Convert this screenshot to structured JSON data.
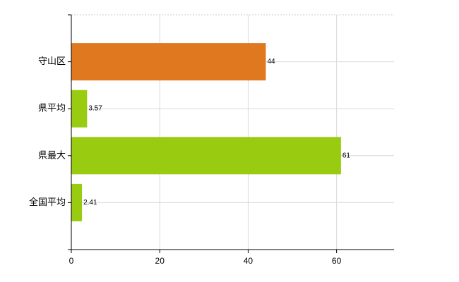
{
  "chart_data": {
    "type": "bar",
    "orientation": "horizontal",
    "categories": [
      "守山区",
      "県平均",
      "県最大",
      "全国平均"
    ],
    "values": [
      44,
      3.57,
      61,
      2.41
    ],
    "value_labels": [
      "44",
      "3.57",
      "61",
      "2.41"
    ],
    "bar_colors": [
      "#e07820",
      "#99cc11",
      "#99cc11",
      "#99cc11"
    ],
    "xlim": [
      0,
      73
    ],
    "x_ticks": [
      0,
      20,
      40,
      60
    ],
    "x_tick_labels": [
      "0",
      "20",
      "40",
      "60"
    ],
    "title": "",
    "xlabel": "",
    "ylabel": "",
    "grid": true,
    "legend": "none"
  }
}
